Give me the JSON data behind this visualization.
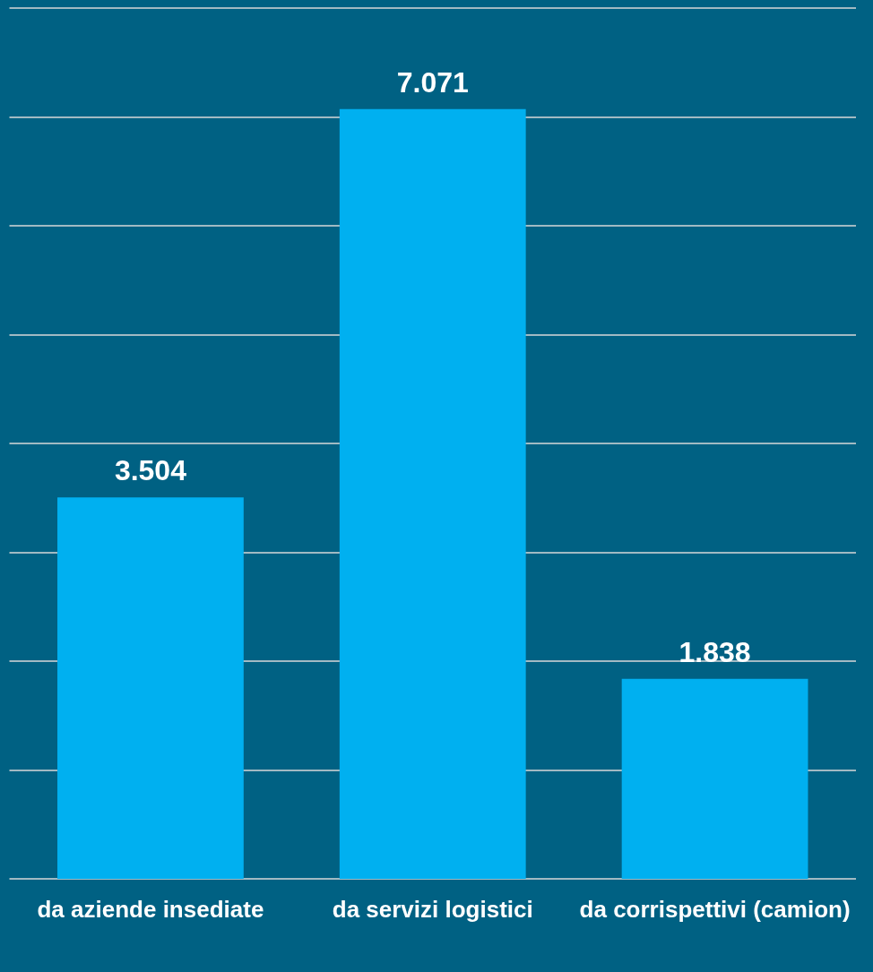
{
  "chart_data": {
    "type": "bar",
    "categories": [
      "da aziende insediate",
      "da servizi logistici",
      "da corrispettivi (camion)"
    ],
    "values": [
      3504,
      7071,
      1838
    ],
    "value_labels": [
      "3.504",
      "7.071",
      "1.838"
    ],
    "color": "#00b0f0",
    "ylim": [
      0,
      8000
    ],
    "yticks": [
      {
        "value": 0,
        "label": null
      },
      {
        "value": 1000,
        "label": null
      },
      {
        "value": 2000,
        "label": null
      },
      {
        "value": 3000,
        "label": null
      },
      {
        "value": 4000,
        "label": null
      },
      {
        "value": 5000,
        "label": null
      },
      {
        "value": 6000,
        "label": null
      },
      {
        "value": 7000,
        "label": null
      },
      {
        "value": 8000,
        "label": null
      }
    ],
    "grid": "y",
    "tick_labels": "x"
  }
}
